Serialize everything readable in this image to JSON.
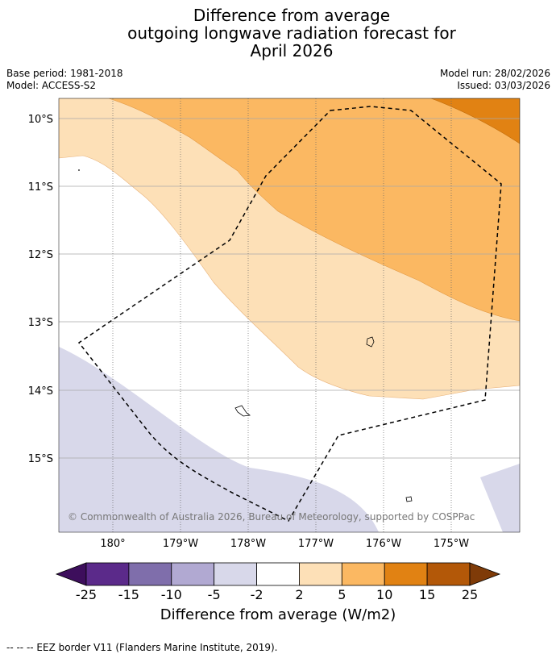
{
  "title": {
    "line1": "Difference from average",
    "line2": "outgoing longwave radiation forecast for",
    "line3": "April 2026"
  },
  "meta": {
    "base_period": "Base period: 1981-2018",
    "model": "Model: ACCESS-S2",
    "model_run": "Model run: 28/02/2026",
    "issued": "Issued: 03/03/2026"
  },
  "map": {
    "lat_labels": [
      "10°S",
      "11°S",
      "12°S",
      "13°S",
      "14°S",
      "15°S"
    ],
    "lon_labels": [
      "180°",
      "179°W",
      "178°W",
      "177°W",
      "176°W",
      "175°W"
    ],
    "credit": "© Commonwealth of Australia 2026, Bureau of Meteorology, supported by COSPPac",
    "layers": [
      {
        "name": "negative-2-to-5",
        "color": "#d8d8ea"
      },
      {
        "name": "positive-2-to-5",
        "color": "#fde0b7"
      },
      {
        "name": "positive-5-to-10",
        "color": "#fbb862"
      },
      {
        "name": "positive-10-to-15",
        "color": "#e18213"
      }
    ]
  },
  "colorbar": {
    "ticks": [
      "-25",
      "-15",
      "-10",
      "-5",
      "-2",
      "2",
      "5",
      "10",
      "15",
      "25"
    ],
    "colors": [
      "#5b2a8a",
      "#7f6eab",
      "#b1a9d2",
      "#d8d8ea",
      "#ffffff",
      "#fde0b7",
      "#fbb862",
      "#e18213",
      "#b35808"
    ],
    "under_color": "#3d0e5c",
    "over_color": "#7f3b08",
    "title": "Difference from average (W/m2)"
  },
  "footnote": "--  --  -- EEZ border V11 (Flanders Marine Institute, 2019)."
}
